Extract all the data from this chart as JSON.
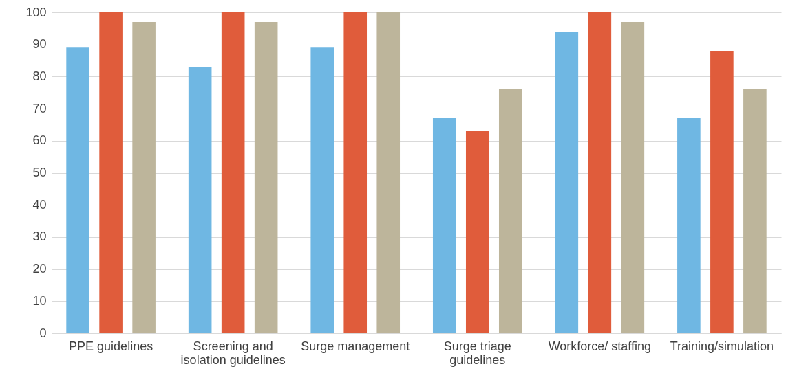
{
  "chart_data": {
    "type": "bar",
    "categories": [
      "PPE guidelines",
      "Screening and isolation guidelines",
      "Surge management",
      "Surge triage guidelines",
      "Workforce/ staffing",
      "Training/simulation"
    ],
    "series": [
      {
        "color": "#6fb7e3",
        "values": [
          89,
          83,
          89,
          67,
          94,
          67
        ]
      },
      {
        "color": "#e05c3b",
        "values": [
          100,
          100,
          100,
          63,
          100,
          88
        ]
      },
      {
        "color": "#bdb59b",
        "values": [
          97,
          97,
          100,
          76,
          97,
          76
        ]
      }
    ],
    "ylim": [
      0,
      100
    ],
    "yticks": [
      0,
      10,
      20,
      30,
      40,
      50,
      60,
      70,
      80,
      90,
      100
    ],
    "grid": "y"
  }
}
